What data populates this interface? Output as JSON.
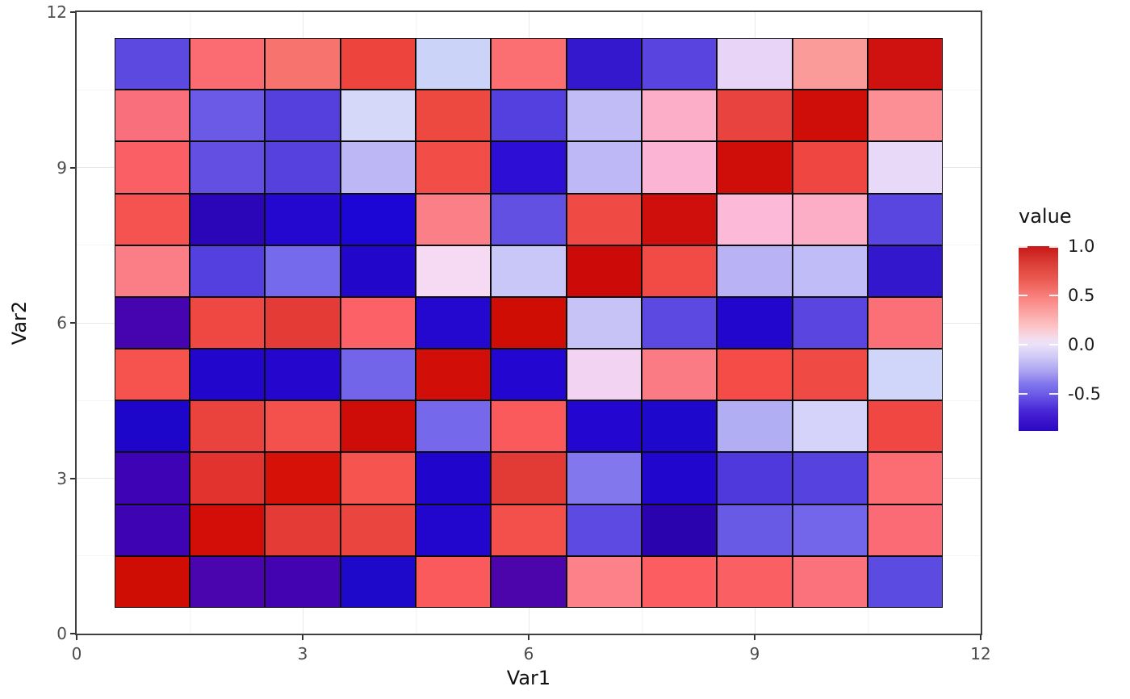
{
  "chart_data": {
    "type": "heatmap",
    "title": "",
    "xlabel": "Var1",
    "ylabel": "Var2",
    "xlim": [
      0,
      12
    ],
    "ylim": [
      0,
      12
    ],
    "x_ticks": [
      0,
      3,
      6,
      9,
      12
    ],
    "y_ticks": [
      0,
      3,
      6,
      9,
      12
    ],
    "x_tick_labels": [
      "0",
      "3",
      "6",
      "9",
      "12"
    ],
    "y_tick_labels": [
      "0",
      "3",
      "6",
      "9",
      "12"
    ],
    "grid_major": [
      3,
      6,
      9
    ],
    "grid_minor": [
      1.5,
      4.5,
      7.5,
      10.5
    ],
    "x_categories": [
      1,
      2,
      3,
      4,
      5,
      6,
      7,
      8,
      9,
      10,
      11
    ],
    "y_categories": [
      1,
      2,
      3,
      4,
      5,
      6,
      7,
      8,
      9,
      10,
      11
    ],
    "row_order": "values[i][j]: rows top to bottom are Var2 = 11 down to 1; columns left to right are Var1 = 1 to 11",
    "values": [
      [
        -0.55,
        0.53,
        0.52,
        0.72,
        -0.2,
        0.53,
        -0.72,
        -0.56,
        0.05,
        0.4,
        0.94
      ],
      [
        0.5,
        -0.5,
        -0.6,
        -0.16,
        0.71,
        -0.6,
        -0.25,
        0.3,
        0.73,
        0.94,
        0.45
      ],
      [
        0.58,
        -0.52,
        -0.58,
        -0.28,
        0.68,
        -0.72,
        -0.27,
        0.27,
        0.94,
        0.7,
        0.02
      ],
      [
        0.65,
        -0.8,
        -0.74,
        -0.76,
        0.47,
        -0.52,
        0.69,
        0.94,
        0.26,
        0.3,
        -0.56
      ],
      [
        0.47,
        -0.6,
        -0.44,
        -0.76,
        0.06,
        -0.21,
        0.95,
        0.69,
        -0.29,
        -0.26,
        -0.71
      ],
      [
        -0.82,
        0.7,
        0.76,
        0.57,
        -0.74,
        0.94,
        -0.22,
        -0.55,
        -0.75,
        -0.56,
        0.52
      ],
      [
        0.65,
        -0.75,
        -0.75,
        -0.46,
        0.93,
        -0.75,
        0.07,
        0.48,
        0.68,
        0.69,
        -0.19
      ],
      [
        -0.77,
        0.72,
        0.66,
        0.94,
        -0.45,
        0.61,
        -0.75,
        -0.76,
        -0.3,
        -0.17,
        0.7
      ],
      [
        -0.8,
        0.78,
        0.92,
        0.64,
        -0.76,
        0.77,
        -0.4,
        -0.75,
        -0.63,
        -0.59,
        0.53
      ],
      [
        -0.8,
        0.93,
        0.76,
        0.71,
        -0.75,
        0.66,
        -0.55,
        -0.81,
        -0.51,
        -0.46,
        0.53
      ],
      [
        0.94,
        -0.79,
        -0.8,
        -0.76,
        0.62,
        -0.79,
        0.46,
        0.62,
        0.6,
        0.5,
        -0.55
      ]
    ],
    "cell_colors": [
      [
        "#5b49e0",
        "#fb6b72",
        "#f7746e",
        "#ee443e",
        "#ccd3f8",
        "#fb6f72",
        "#3318cd",
        "#5a44e0",
        "#e7d4f6",
        "#fb9b99",
        "#cf1110"
      ],
      [
        "#fa6f7c",
        "#6a5ae5",
        "#5540dd",
        "#d5d8f9",
        "#ee4941",
        "#5340de",
        "#c2bcf6",
        "#fcaec8",
        "#e8433e",
        "#cf0d09",
        "#fc8f96"
      ],
      [
        "#fa5f66",
        "#6350e2",
        "#5640de",
        "#bdb7f5",
        "#f24d46",
        "#2d0ed4",
        "#beb9f6",
        "#fcb4d4",
        "#cf0e0a",
        "#ef4641",
        "#e9d9f8"
      ],
      [
        "#f5534f",
        "#2a06b8",
        "#2408cf",
        "#1c06d6",
        "#fb7f87",
        "#6150e2",
        "#f04a44",
        "#cf0f0c",
        "#fcb9d8",
        "#fbaec6",
        "#5946e0"
      ],
      [
        "#fb7d85",
        "#5340de",
        "#766aec",
        "#2206c9",
        "#f6d9f2",
        "#c9c6f8",
        "#cc0b09",
        "#f24a44",
        "#b9b3f5",
        "#c0bcf7",
        "#3317cd"
      ],
      [
        "#4603b0",
        "#ef4843",
        "#e43b37",
        "#fb6167",
        "#2408cf",
        "#cf0d04",
        "#c7c3f7",
        "#5c49e1",
        "#2306cd",
        "#5b45e0",
        "#fb6f76"
      ],
      [
        "#f6524e",
        "#2206cc",
        "#2406cc",
        "#7365ea",
        "#d10e07",
        "#2306cf",
        "#f2d3f2",
        "#fb7b84",
        "#f54c48",
        "#f04a45",
        "#cfd6f9"
      ],
      [
        "#1d05c9",
        "#ea423d",
        "#f4514c",
        "#ce0d08",
        "#7568eb",
        "#fa5a5c",
        "#2306cf",
        "#1d08cb",
        "#b2aef4",
        "#d5d3fa",
        "#f04742"
      ],
      [
        "#3d03b5",
        "#e3332f",
        "#d61108",
        "#f6544f",
        "#2005cc",
        "#e23b36",
        "#8377ee",
        "#2106cd",
        "#4f38dc",
        "#5642de",
        "#fb6d73"
      ],
      [
        "#3e03b2",
        "#d30d07",
        "#e43b37",
        "#ea453f",
        "#2306cd",
        "#f4504b",
        "#5d4ae2",
        "#2a02ae",
        "#695ae5",
        "#7466ea",
        "#fb6b76"
      ],
      [
        "#d00d04",
        "#4a05ae",
        "#4403b0",
        "#1e08c9",
        "#fb5a5d",
        "#4c04ab",
        "#fc8189",
        "#fb5d60",
        "#fa5f63",
        "#fb727c",
        "#5c4be1"
      ]
    ],
    "legend": {
      "title": "value",
      "position": "right",
      "domain": [
        -0.88,
        1.0
      ],
      "ticks": [
        1.0,
        0.5,
        0.0,
        -0.5
      ],
      "tick_labels": [
        "1.0",
        "0.5",
        "0.0",
        "-0.5"
      ],
      "gradient_stops": [
        [
          0.0,
          "#c81717"
        ],
        [
          0.08,
          "#d83a33"
        ],
        [
          0.18,
          "#ea5a51"
        ],
        [
          0.27,
          "#f97f7c"
        ],
        [
          0.36,
          "#fba5a4"
        ],
        [
          0.44,
          "#fcc6c9"
        ],
        [
          0.5,
          "#f3dcee"
        ],
        [
          0.53,
          "#ebe3f9"
        ],
        [
          0.6,
          "#cfc9f6"
        ],
        [
          0.68,
          "#aaa1f0"
        ],
        [
          0.74,
          "#8478ec"
        ],
        [
          0.8,
          "#6c5ce7"
        ],
        [
          0.88,
          "#4c2cd9"
        ],
        [
          0.94,
          "#3a15cd"
        ],
        [
          1.0,
          "#2d08c2"
        ]
      ]
    },
    "colors": {
      "high": "#c81717",
      "mid": "#ebe3f9",
      "low": "#2d08c2",
      "tile_border": "#0d0d0d",
      "panel_border": "#3f3f3f",
      "grid_major": "#e8e8e8",
      "grid_minor": "#f4f4f4",
      "tick_text": "#4d4d4d"
    }
  }
}
